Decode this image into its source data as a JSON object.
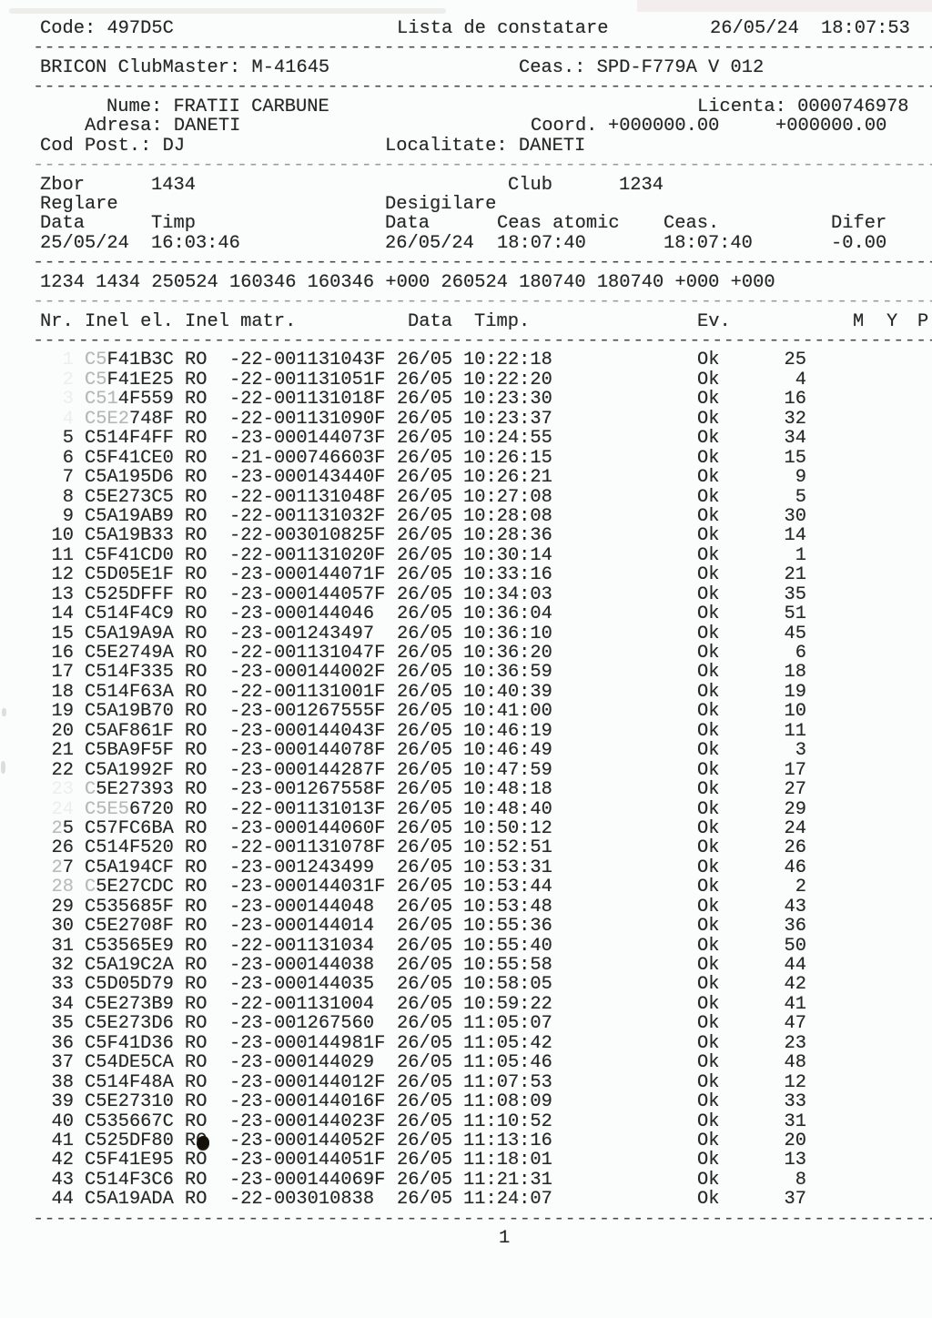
{
  "chrome": {
    "separator": "--------------------------------------------------------------------------------"
  },
  "header": {
    "code_label": "Code:",
    "code_value": "497D5C",
    "title": "Lista de constatare",
    "date": "26/05/24",
    "time": "18:07:53"
  },
  "device": {
    "label": "BRICON ClubMaster:",
    "value": "M-41645",
    "clock_label": "Ceas.:",
    "clock_value": "SPD-F779A V 012"
  },
  "member": {
    "name_label": "Nume:",
    "name": "FRATII CARBUNE",
    "licence_label": "Licenta:",
    "licence": "0000746978",
    "address_label": "Adresa:",
    "address": "DANETI",
    "coord_label": "Coord.",
    "coord_x": "+000000.00",
    "coord_y": "+000000.00",
    "postcode_label": "Cod Post.:",
    "postcode": "DJ",
    "locality_label": "Localitate:",
    "locality": "DANETI"
  },
  "race": {
    "flight_label": "Zbor",
    "flight": "1434",
    "club_label": "Club",
    "club": "1234",
    "set_label": "Reglare",
    "unseal_label": "Desigilare",
    "data_label": "Data",
    "timp_label": "Timp",
    "data2_label": "Data",
    "atomic_label": "Ceas atomic",
    "clock_label": "Ceas.",
    "diff_label": "Difer",
    "set_date": "25/05/24",
    "set_time": "16:03:46",
    "unseal_date": "26/05/24",
    "atomic_time": "18:07:40",
    "clock_time": "18:07:40",
    "diff": "-0.00",
    "summary": "1234 1434 250524 160346 160346 +000 260524 180740 180740 +000 +000"
  },
  "table": {
    "headers": {
      "nr": "Nr.",
      "inel_el": "Inel el.",
      "inel_matr": "Inel matr.",
      "data": "Data",
      "timp": "Timp.",
      "ev": "Ev.",
      "m": "M",
      "y": "Y",
      "p": "P"
    },
    "rows": [
      {
        "nr": "1",
        "ring": "C5F41B3C",
        "country": "RO",
        "matr": "-22-001131043F",
        "date": "26/05",
        "time": "10:22:18",
        "ev": "Ok",
        "count": "25",
        "fade_nr": "hidden",
        "fade_ring": 2
      },
      {
        "nr": "2",
        "ring": "C5F41E25",
        "country": "RO",
        "matr": "-22-001131051F",
        "date": "26/05",
        "time": "10:22:20",
        "ev": "Ok",
        "count": "4",
        "fade_nr": "hidden",
        "fade_ring": 2
      },
      {
        "nr": "3",
        "ring": "C514F559",
        "country": "RO",
        "matr": "-22-001131018F",
        "date": "26/05",
        "time": "10:23:30",
        "ev": "Ok",
        "count": "16",
        "fade_nr": "hidden",
        "fade_ring": 3
      },
      {
        "nr": "4",
        "ring": "C5E2748F",
        "country": "RO",
        "matr": "-22-001131090F",
        "date": "26/05",
        "time": "10:23:37",
        "ev": "Ok",
        "count": "32",
        "fade_nr": "hidden",
        "fade_ring": 4
      },
      {
        "nr": "5",
        "ring": "C514F4FF",
        "country": "RO",
        "matr": "-23-000144073F",
        "date": "26/05",
        "time": "10:24:55",
        "ev": "Ok",
        "count": "34"
      },
      {
        "nr": "6",
        "ring": "C5F41CE0",
        "country": "RO",
        "matr": "-21-000746603F",
        "date": "26/05",
        "time": "10:26:15",
        "ev": "Ok",
        "count": "15"
      },
      {
        "nr": "7",
        "ring": "C5A195D6",
        "country": "RO",
        "matr": "-23-000143440F",
        "date": "26/05",
        "time": "10:26:21",
        "ev": "Ok",
        "count": "9"
      },
      {
        "nr": "8",
        "ring": "C5E273C5",
        "country": "RO",
        "matr": "-22-001131048F",
        "date": "26/05",
        "time": "10:27:08",
        "ev": "Ok",
        "count": "5"
      },
      {
        "nr": "9",
        "ring": "C5A19AB9",
        "country": "RO",
        "matr": "-22-001131032F",
        "date": "26/05",
        "time": "10:28:08",
        "ev": "Ok",
        "count": "30"
      },
      {
        "nr": "10",
        "ring": "C5A19B33",
        "country": "RO",
        "matr": "-22-003010825F",
        "date": "26/05",
        "time": "10:28:36",
        "ev": "Ok",
        "count": "14"
      },
      {
        "nr": "11",
        "ring": "C5F41CD0",
        "country": "RO",
        "matr": "-22-001131020F",
        "date": "26/05",
        "time": "10:30:14",
        "ev": "Ok",
        "count": "1"
      },
      {
        "nr": "12",
        "ring": "C5D05E1F",
        "country": "RO",
        "matr": "-23-000144071F",
        "date": "26/05",
        "time": "10:33:16",
        "ev": "Ok",
        "count": "21"
      },
      {
        "nr": "13",
        "ring": "C525DFFF",
        "country": "RO",
        "matr": "-23-000144057F",
        "date": "26/05",
        "time": "10:34:03",
        "ev": "Ok",
        "count": "35"
      },
      {
        "nr": "14",
        "ring": "C514F4C9",
        "country": "RO",
        "matr": "-23-000144046",
        "date": "26/05",
        "time": "10:36:04",
        "ev": "Ok",
        "count": "51"
      },
      {
        "nr": "15",
        "ring": "C5A19A9A",
        "country": "RO",
        "matr": "-23-001243497",
        "date": "26/05",
        "time": "10:36:10",
        "ev": "Ok",
        "count": "45"
      },
      {
        "nr": "16",
        "ring": "C5E2749A",
        "country": "RO",
        "matr": "-22-001131047F",
        "date": "26/05",
        "time": "10:36:20",
        "ev": "Ok",
        "count": "6"
      },
      {
        "nr": "17",
        "ring": "C514F335",
        "country": "RO",
        "matr": "-23-000144002F",
        "date": "26/05",
        "time": "10:36:59",
        "ev": "Ok",
        "count": "18"
      },
      {
        "nr": "18",
        "ring": "C514F63A",
        "country": "RO",
        "matr": "-22-001131001F",
        "date": "26/05",
        "time": "10:40:39",
        "ev": "Ok",
        "count": "19"
      },
      {
        "nr": "19",
        "ring": "C5A19B70",
        "country": "RO",
        "matr": "-23-001267555F",
        "date": "26/05",
        "time": "10:41:00",
        "ev": "Ok",
        "count": "10"
      },
      {
        "nr": "20",
        "ring": "C5AF861F",
        "country": "RO",
        "matr": "-23-000144043F",
        "date": "26/05",
        "time": "10:46:19",
        "ev": "Ok",
        "count": "11"
      },
      {
        "nr": "21",
        "ring": "C5BA9F5F",
        "country": "RO",
        "matr": "-23-000144078F",
        "date": "26/05",
        "time": "10:46:49",
        "ev": "Ok",
        "count": "3"
      },
      {
        "nr": "22",
        "ring": "C5A1992F",
        "country": "RO",
        "matr": "-23-000144287F",
        "date": "26/05",
        "time": "10:47:59",
        "ev": "Ok",
        "count": "17"
      },
      {
        "nr": "23",
        "ring": "C5E27393",
        "country": "RO",
        "matr": "-23-001267558F",
        "date": "26/05",
        "time": "10:48:18",
        "ev": "Ok",
        "count": "27",
        "fade_nr": "hidden",
        "fade_ring": 1
      },
      {
        "nr": "24",
        "ring": "C5E56720",
        "country": "RO",
        "matr": "-22-001131013F",
        "date": "26/05",
        "time": "10:48:40",
        "ev": "Ok",
        "count": "29",
        "fade_nr": "hidden",
        "fade_ring": 4
      },
      {
        "nr": "25",
        "ring": "C57FC6BA",
        "country": "RO",
        "matr": "-23-000144060F",
        "date": "26/05",
        "time": "10:50:12",
        "ev": "Ok",
        "count": "24",
        "fade_nr": "first-dim"
      },
      {
        "nr": "26",
        "ring": "C514F520",
        "country": "RO",
        "matr": "-22-001131078F",
        "date": "26/05",
        "time": "10:52:51",
        "ev": "Ok",
        "count": "26"
      },
      {
        "nr": "27",
        "ring": "C5A194CF",
        "country": "RO",
        "matr": "-23-001243499",
        "date": "26/05",
        "time": "10:53:31",
        "ev": "Ok",
        "count": "46",
        "fade_nr": "first-dim"
      },
      {
        "nr": "28",
        "ring": "C5E27CDC",
        "country": "RO",
        "matr": "-23-000144031F",
        "date": "26/05",
        "time": "10:53:44",
        "ev": "Ok",
        "count": "2",
        "fade_nr": "dim",
        "fade_ring": 1
      },
      {
        "nr": "29",
        "ring": "C535685F",
        "country": "RO",
        "matr": "-23-000144048",
        "date": "26/05",
        "time": "10:53:48",
        "ev": "Ok",
        "count": "43"
      },
      {
        "nr": "30",
        "ring": "C5E2708F",
        "country": "RO",
        "matr": "-23-000144014",
        "date": "26/05",
        "time": "10:55:36",
        "ev": "Ok",
        "count": "36"
      },
      {
        "nr": "31",
        "ring": "C53565E9",
        "country": "RO",
        "matr": "-22-001131034",
        "date": "26/05",
        "time": "10:55:40",
        "ev": "Ok",
        "count": "50"
      },
      {
        "nr": "32",
        "ring": "C5A19C2A",
        "country": "RO",
        "matr": "-23-000144038",
        "date": "26/05",
        "time": "10:55:58",
        "ev": "Ok",
        "count": "44"
      },
      {
        "nr": "33",
        "ring": "C5D05D79",
        "country": "RO",
        "matr": "-23-000144035",
        "date": "26/05",
        "time": "10:58:05",
        "ev": "Ok",
        "count": "42"
      },
      {
        "nr": "34",
        "ring": "C5E273B9",
        "country": "RO",
        "matr": "-22-001131004",
        "date": "26/05",
        "time": "10:59:22",
        "ev": "Ok",
        "count": "41"
      },
      {
        "nr": "35",
        "ring": "C5E273D6",
        "country": "RO",
        "matr": "-23-001267560",
        "date": "26/05",
        "time": "11:05:07",
        "ev": "Ok",
        "count": "47"
      },
      {
        "nr": "36",
        "ring": "C5F41D36",
        "country": "RO",
        "matr": "-23-000144981F",
        "date": "26/05",
        "time": "11:05:42",
        "ev": "Ok",
        "count": "23"
      },
      {
        "nr": "37",
        "ring": "C54DE5CA",
        "country": "RO",
        "matr": "-23-000144029",
        "date": "26/05",
        "time": "11:05:46",
        "ev": "Ok",
        "count": "48"
      },
      {
        "nr": "38",
        "ring": "C514F48A",
        "country": "RO",
        "matr": "-23-000144012F",
        "date": "26/05",
        "time": "11:07:53",
        "ev": "Ok",
        "count": "12"
      },
      {
        "nr": "39",
        "ring": "C5E27310",
        "country": "RO",
        "matr": "-23-000144016F",
        "date": "26/05",
        "time": "11:08:09",
        "ev": "Ok",
        "count": "33"
      },
      {
        "nr": "40",
        "ring": "C535667C",
        "country": "RO",
        "matr": "-23-000144023F",
        "date": "26/05",
        "time": "11:10:52",
        "ev": "Ok",
        "count": "31"
      },
      {
        "nr": "41",
        "ring": "C525DF80",
        "country": "RO",
        "matr": "-23-000144052F",
        "date": "26/05",
        "time": "11:13:16",
        "ev": "Ok",
        "count": "20",
        "blot": true
      },
      {
        "nr": "42",
        "ring": "C5F41E95",
        "country": "RO",
        "matr": "-23-000144051F",
        "date": "26/05",
        "time": "11:18:01",
        "ev": "Ok",
        "count": "13"
      },
      {
        "nr": "43",
        "ring": "C514F3C6",
        "country": "RO",
        "matr": "-23-000144069F",
        "date": "26/05",
        "time": "11:21:31",
        "ev": "Ok",
        "count": "8"
      },
      {
        "nr": "44",
        "ring": "C5A19ADA",
        "country": "RO",
        "matr": "-22-003010838",
        "date": "26/05",
        "time": "11:24:07",
        "ev": "Ok",
        "count": "37"
      }
    ]
  },
  "footer": {
    "page": "1"
  }
}
